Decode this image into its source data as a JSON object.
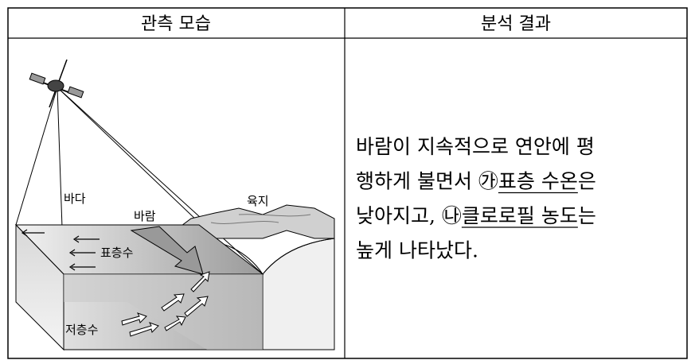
{
  "table": {
    "headers": [
      "관측 모습",
      "분석 결과"
    ],
    "figure": {
      "labels": {
        "sea": "바다",
        "wind": "바람",
        "land": "육지",
        "surface_water": "표층수",
        "bottom_water": "저층수"
      }
    },
    "result": {
      "lines": [
        [
          {
            "text": "바람이 지속적으로 연안에 평",
            "underline": false
          }
        ],
        [
          {
            "text": "행하게 불면서 ㉮",
            "underline": false
          },
          {
            "text": "표층 수온",
            "underline": true
          },
          {
            "text": "은",
            "underline": false
          }
        ],
        [
          {
            "text": "낮아지고, ㉯",
            "underline": false
          },
          {
            "text": "클로로필 농도",
            "underline": true
          },
          {
            "text": "는",
            "underline": false
          }
        ],
        [
          {
            "text": "높게 나타났다.",
            "underline": false
          }
        ]
      ]
    }
  }
}
